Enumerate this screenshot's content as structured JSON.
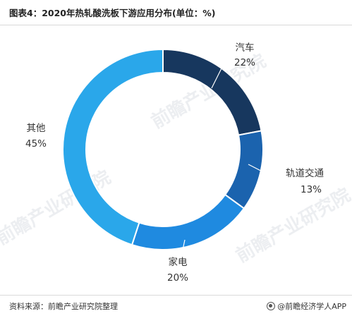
{
  "title": "图表4：2020年热轧酸洗板下游应用分布(单位：%)",
  "source": "资料来源：前瞻产业研究院整理",
  "brand": "@前瞻经济学人APP",
  "watermark": "前瞻产业研究院",
  "chart_data": {
    "type": "pie",
    "donut": true,
    "title": "图表4：2020年热轧酸洗板下游应用分布(单位：%)",
    "unit": "%",
    "start": "top, clockwise",
    "slices": [
      {
        "label": "汽车",
        "value": 22,
        "value_label": "22%",
        "color": "#17375e"
      },
      {
        "label": "轨道交通",
        "value": 13,
        "value_label": "13%",
        "color": "#1b63ae"
      },
      {
        "label": "家电",
        "value": 20,
        "value_label": "20%",
        "color": "#1f8ae0"
      },
      {
        "label": "其他",
        "value": 45,
        "value_label": "45%",
        "color": "#2aa7ea"
      }
    ]
  }
}
